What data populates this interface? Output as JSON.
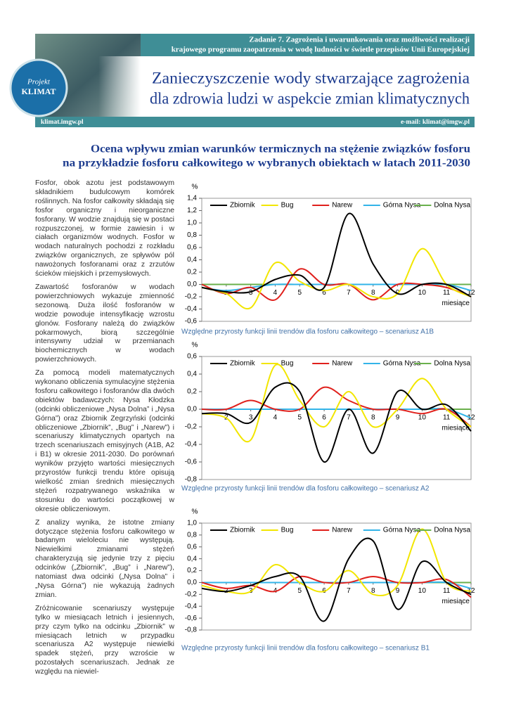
{
  "header": {
    "task": [
      "Zadanie 7. Zagrożenia i uwarunkowania oraz możliwości realizacji",
      "krajowego programu zaopatrzenia w wodę ludności w świetle przepisów Unii Europejskiej"
    ],
    "logo": [
      "Projekt",
      "KLIMAT"
    ],
    "title": [
      "Zanieczyszczenie wody stwarzające zagrożenia",
      "dla zdrowia ludzi w aspekcie zmian klimatycznych"
    ],
    "website": "klimat.imgw.pl",
    "email": "e-mail: klimat@imgw.pl"
  },
  "subtitle": [
    "Ocena wpływu zmian warunków termicznych na stężenie związków fosforu",
    "na przykładzie fosforu całkowitego w wybranych obiektach w latach 2011-2030"
  ],
  "paragraphs": [
    "Fosfor, obok azotu jest podstawowym składnikiem budulcowym komórek roślinnych. Na fosfor całkowity składają się fosfor organiczny i nieorganiczne fosforany. W wodzie znajdują się w postaci rozpuszczonej, w formie zawiesin i w ciałach organizmów wodnych. Fosfor w wodach naturalnych pochodzi z rozkładu związków organicznych, ze spływów pól nawożonych fosforanami oraz z zrzutów ścieków miejskich i przemysłowych.",
    "Zawartość fosforanów w wodach powierzchniowych wykazuje zmienność sezonową. Duża ilość fosforanów w wodzie powoduje intensyfikację wzrostu glonów. Fosforany należą do związków pokarmowych, biorą szczególnie intensywny udział w przemianach biochemicznych w wodach powierzchniowych.",
    "Za pomocą modeli matematycznych wykonano obliczenia symulacyjne stężenia fosforu całkowitego i fosforanów dla dwóch obiektów badawczych: Nysa Kłodzka (odcinki obliczeniowe „Nysa Dolna” i „Nysa Górna”) oraz Zbiornik Zegrzyński (odcinki obliczeniowe „Zbiornik”, „Bug” i „Narew”) i scenariuszy klimatycznych opartych na trzech scenariuszach emisyjnych (A1B, A2 i B1) w okresie 2011-2030. Do porównań wyników przyjęto wartości miesięcznych przyrostów funkcji trendu które opisują wielkość zmian średnich miesięcznych stężeń rozpatrywanego wskaźnika w stosunku do wartości początkowej w okresie obliczeniowym.",
    "Z analizy wynika, że istotne zmiany dotyczące stężenia fosforu całkowitego w badanym wieloleciu nie występują. Niewielkimi zmianami stężeń charakteryzują się jedynie trzy z pięciu odcinków („Zbiornik”, „Bug” i „Narew”), natomiast dwa odcinki („Nysa Dolna” i „Nysa Górna”) nie wykazują żadnych zmian.",
    "Zróżnicowanie scenariuszy występuje tylko w miesiącach letnich i jesiennych, przy czym tylko na odcinku „Zbiornik” w miesiącach letnich w przypadku scenariusza A2 występuje niewielki spadek stężeń, przy wzroście w pozostałych scenariuszach. Jednak ze względu na niewiel-"
  ],
  "chart_data": [
    {
      "type": "line",
      "caption": "Względne przyrosty funkcji linii trendów dla fosforu całkowitego – scenariusz A1B",
      "y_label": "%",
      "x_label": "miesiące",
      "legend": "top",
      "x": [
        1,
        2,
        3,
        4,
        5,
        6,
        7,
        8,
        9,
        10,
        11,
        12
      ],
      "xlim": [
        1,
        12
      ],
      "xticks": [
        2,
        3,
        4,
        5,
        6,
        7,
        8,
        9,
        10,
        11,
        12
      ],
      "ylim": [
        -0.6,
        1.4
      ],
      "yticks": [
        {
          "value": -0.6,
          "label": "-0,6"
        },
        {
          "value": -0.4,
          "label": "-0,4"
        },
        {
          "value": -0.2,
          "label": "-0,2"
        },
        {
          "value": 0,
          "label": "0,0"
        },
        {
          "value": 0.2,
          "label": "0,2"
        },
        {
          "value": 0.4,
          "label": "0,4"
        },
        {
          "value": 0.6,
          "label": "0,6"
        },
        {
          "value": 0.8,
          "label": "0,8"
        },
        {
          "value": 1.0,
          "label": "1,0"
        },
        {
          "value": 1.2,
          "label": "1,2"
        },
        {
          "value": 1.4,
          "label": "1,4"
        }
      ],
      "series": [
        {
          "name": "Zbiornik",
          "color": "#000000",
          "values": [
            -0.05,
            -0.12,
            -0.12,
            0.08,
            0.15,
            -0.05,
            1.15,
            0.33,
            -0.15,
            0.0,
            0.0,
            -0.2
          ]
        },
        {
          "name": "Bug",
          "color": "#f2e600",
          "values": [
            -0.05,
            -0.15,
            -0.38,
            0.35,
            0.05,
            -0.1,
            0.0,
            -0.2,
            -0.15,
            0.58,
            0.0,
            -0.2
          ]
        },
        {
          "name": "Narew",
          "color": "#e0201c",
          "values": [
            0.0,
            -0.15,
            -0.05,
            -0.25,
            0.25,
            0.0,
            0.0,
            -0.25,
            0.0,
            0.0,
            -0.05,
            -0.2
          ]
        },
        {
          "name": "Górna Nysa",
          "color": "#33b4e8",
          "values": [
            -0.05,
            -0.1,
            -0.05,
            0,
            0,
            0,
            0,
            0,
            0,
            0,
            0,
            -0.1
          ]
        },
        {
          "name": "Dolna Nysa",
          "color": "#6ab04c",
          "values": [
            0,
            0,
            0,
            0,
            0,
            0,
            0,
            0,
            0,
            0,
            0,
            0
          ]
        }
      ]
    },
    {
      "type": "line",
      "caption": "Względne przyrosty funkcji linii trendów dla fosforu całkowitego – scenariusz A2",
      "y_label": "%",
      "x_label": "miesiące",
      "legend": "top",
      "x": [
        1,
        2,
        3,
        4,
        5,
        6,
        7,
        8,
        9,
        10,
        11,
        12
      ],
      "xlim": [
        1,
        12
      ],
      "xticks": [
        2,
        3,
        4,
        5,
        6,
        7,
        8,
        9,
        10,
        11,
        12
      ],
      "ylim": [
        -0.8,
        0.6
      ],
      "yticks": [
        {
          "value": -0.8,
          "label": "-0,8"
        },
        {
          "value": -0.6,
          "label": "-0,6"
        },
        {
          "value": -0.4,
          "label": "-0,4"
        },
        {
          "value": -0.2,
          "label": "-0,2"
        },
        {
          "value": 0,
          "label": "0,0"
        },
        {
          "value": 0.2,
          "label": "0,2"
        },
        {
          "value": 0.4,
          "label": "0,4"
        },
        {
          "value": 0.6,
          "label": "0,6"
        }
      ],
      "series": [
        {
          "name": "Zbiornik",
          "color": "#000000",
          "values": [
            -0.05,
            -0.05,
            -0.15,
            0.25,
            0.2,
            -0.6,
            0.0,
            -0.5,
            0.2,
            0.0,
            0.05,
            -0.25
          ]
        },
        {
          "name": "Bug",
          "color": "#f2e600",
          "values": [
            -0.05,
            -0.1,
            -0.35,
            0.5,
            0.1,
            -0.2,
            0.2,
            -0.2,
            0.0,
            0.35,
            0.0,
            -0.2
          ]
        },
        {
          "name": "Narew",
          "color": "#e0201c",
          "values": [
            0.0,
            0.0,
            0.1,
            0.0,
            0.0,
            0.25,
            0.1,
            0.0,
            0.0,
            -0.05,
            0.0,
            -0.2
          ]
        },
        {
          "name": "Górna Nysa",
          "color": "#33b4e8",
          "values": [
            0,
            0,
            0,
            0,
            0,
            0,
            0,
            0,
            0,
            0,
            0,
            -0.1
          ]
        },
        {
          "name": "Dolna Nysa",
          "color": "#6ab04c",
          "values": [
            0,
            0,
            0,
            0,
            0,
            0,
            0,
            0,
            0,
            0,
            0,
            0
          ]
        }
      ]
    },
    {
      "type": "line",
      "caption": "Względne przyrosty funkcji linii trendów dla fosforu całkowitego – scenariusz B1",
      "y_label": "%",
      "x_label": "miesiące",
      "legend": "top",
      "x": [
        1,
        2,
        3,
        4,
        5,
        6,
        7,
        8,
        9,
        10,
        11,
        12
      ],
      "xlim": [
        1,
        12
      ],
      "xticks": [
        2,
        3,
        4,
        5,
        6,
        7,
        8,
        9,
        10,
        11,
        12
      ],
      "ylim": [
        -0.8,
        1.0
      ],
      "yticks": [
        {
          "value": -0.8,
          "label": "-0,8"
        },
        {
          "value": -0.6,
          "label": "-0,6"
        },
        {
          "value": -0.4,
          "label": "-0,4"
        },
        {
          "value": -0.2,
          "label": "-0,2"
        },
        {
          "value": 0,
          "label": "0,0"
        },
        {
          "value": 0.2,
          "label": "0,2"
        },
        {
          "value": 0.4,
          "label": "0,4"
        },
        {
          "value": 0.6,
          "label": "0,6"
        },
        {
          "value": 0.8,
          "label": "0,8"
        },
        {
          "value": 1.0,
          "label": "1,0"
        }
      ],
      "series": [
        {
          "name": "Zbiornik",
          "color": "#000000",
          "values": [
            -0.1,
            -0.15,
            -0.05,
            0.1,
            0.1,
            -0.65,
            0.4,
            0.7,
            -0.45,
            0.35,
            0.0,
            -0.2
          ]
        },
        {
          "name": "Bug",
          "color": "#f2e600",
          "values": [
            -0.05,
            -0.15,
            -0.15,
            0.3,
            0.0,
            -0.15,
            0.2,
            -0.2,
            -0.05,
            0.9,
            0.0,
            -0.15
          ]
        },
        {
          "name": "Narew",
          "color": "#e0201c",
          "values": [
            0.0,
            -0.1,
            -0.05,
            -0.15,
            0.1,
            0.0,
            0.0,
            0.1,
            0.0,
            0.0,
            0.05,
            -0.25
          ]
        },
        {
          "name": "Górna Nysa",
          "color": "#33b4e8",
          "values": [
            0,
            0,
            0,
            0,
            0,
            0,
            0,
            0,
            0,
            0,
            0,
            -0.1
          ]
        },
        {
          "name": "Dolna Nysa",
          "color": "#6ab04c",
          "values": [
            0,
            0,
            0,
            0,
            0,
            0,
            0,
            0,
            0,
            0,
            0,
            0
          ]
        }
      ]
    }
  ]
}
